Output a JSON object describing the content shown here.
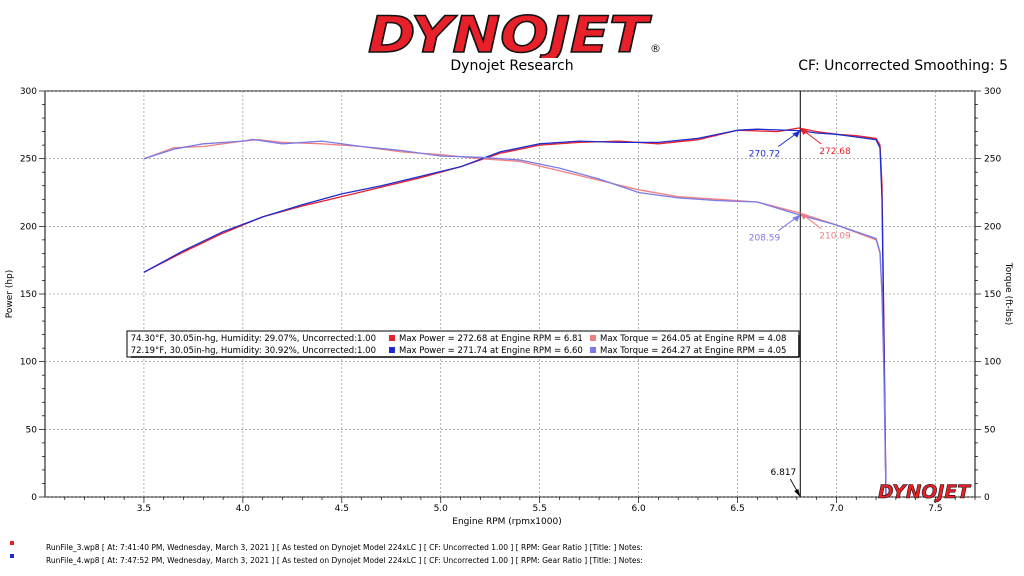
{
  "header": {
    "logo_text": "DYNOJET",
    "registered_mark": "®",
    "subtitle": "Dynojet Research",
    "cf_label": "CF: Uncorrected Smoothing: 5"
  },
  "chart_data": {
    "type": "line",
    "xlabel": "Engine RPM (rpmx1000)",
    "ylabel_left": "Power (hp)",
    "ylabel_right": "Torque (ft-lbs)",
    "xlim": [
      3.0,
      7.7
    ],
    "ylim": [
      0,
      300
    ],
    "x_ticks": [
      "3.5",
      "4.0",
      "4.5",
      "5.0",
      "5.5",
      "6.0",
      "6.5",
      "7.0",
      "7.5"
    ],
    "y_ticks": [
      "0",
      "50",
      "100",
      "150",
      "200",
      "250",
      "300"
    ],
    "grid": true,
    "series": [
      {
        "name": "Power",
        "run": "RunFile_3",
        "color": "#e8202a",
        "x": [
          3.5,
          3.7,
          3.9,
          4.1,
          4.3,
          4.5,
          4.7,
          4.9,
          5.1,
          5.3,
          5.5,
          5.7,
          5.9,
          6.1,
          6.3,
          6.5,
          6.7,
          6.81,
          6.9,
          7.0,
          7.1,
          7.2,
          7.22,
          7.23,
          7.24,
          7.25
        ],
        "y": [
          166,
          181,
          195,
          207,
          215,
          222,
          229,
          236,
          244,
          254,
          260,
          262,
          263,
          261,
          264,
          271,
          270,
          272.68,
          270,
          268,
          267,
          265,
          260,
          230,
          120,
          0
        ]
      },
      {
        "name": "Torque",
        "run": "RunFile_3",
        "color": "#f08080",
        "x": [
          3.5,
          3.65,
          3.8,
          4.0,
          4.08,
          4.2,
          4.4,
          4.6,
          4.8,
          5.0,
          5.2,
          5.4,
          5.6,
          5.8,
          6.0,
          6.2,
          6.4,
          6.6,
          6.81,
          7.0,
          7.2,
          7.22,
          7.23,
          7.24,
          7.25
        ],
        "y": [
          250,
          258,
          259,
          263,
          264.05,
          262,
          261,
          259,
          255,
          253,
          250,
          248,
          241,
          234,
          227,
          222,
          220,
          218,
          210.09,
          201,
          190,
          180,
          150,
          90,
          0
        ]
      },
      {
        "name": "Power",
        "run": "RunFile_4",
        "color": "#1d2bd0",
        "x": [
          3.5,
          3.7,
          3.9,
          4.1,
          4.3,
          4.5,
          4.7,
          4.9,
          5.1,
          5.3,
          5.5,
          5.7,
          5.9,
          6.1,
          6.3,
          6.5,
          6.6,
          6.81,
          6.9,
          7.0,
          7.1,
          7.2,
          7.22,
          7.23,
          7.24,
          7.25
        ],
        "y": [
          166,
          182,
          196,
          207,
          216,
          224,
          230,
          237,
          244,
          255,
          261,
          263,
          262,
          262,
          265,
          271,
          271.74,
          270.72,
          269,
          268,
          266,
          264,
          258,
          220,
          110,
          0
        ]
      },
      {
        "name": "Torque",
        "run": "RunFile_4",
        "color": "#7a7ae8",
        "x": [
          3.5,
          3.65,
          3.8,
          4.0,
          4.05,
          4.2,
          4.4,
          4.6,
          4.8,
          5.0,
          5.2,
          5.4,
          5.6,
          5.8,
          6.0,
          6.2,
          6.4,
          6.6,
          6.81,
          7.0,
          7.2,
          7.22,
          7.23,
          7.24,
          7.25
        ],
        "y": [
          250,
          257,
          261,
          263,
          264.27,
          261,
          263,
          259,
          256,
          252,
          251,
          249,
          243,
          235,
          225,
          221,
          219,
          218,
          208.59,
          201,
          191,
          181,
          150,
          90,
          0
        ]
      }
    ],
    "cursor": {
      "x": 6.817,
      "label": "6.817"
    },
    "cursor_values": [
      {
        "label": "272.68",
        "y": 272.68,
        "color": "#e8202a"
      },
      {
        "label": "270.72",
        "y": 270.72,
        "color": "#1d2bd0"
      },
      {
        "label": "210.09",
        "y": 210.09,
        "color": "#f08080"
      },
      {
        "label": "208.59",
        "y": 208.59,
        "color": "#7a7ae8"
      }
    ],
    "legend": [
      {
        "conditions": "74.30°F, 30.05in-hg, Humidity: 29.07%, Uncorrected:1.00",
        "power_color": "#e8202a",
        "power_text": "Max Power = 272.68 at Engine RPM = 6.81",
        "torque_color": "#f08080",
        "torque_text": "Max Torque = 264.05 at Engine RPM = 4.08"
      },
      {
        "conditions": "72.19°F, 30.05in-hg, Humidity: 30.92%, Uncorrected:1.00",
        "power_color": "#1d2bd0",
        "power_text": "Max Power = 271.74 at Engine RPM = 6.60",
        "torque_color": "#7a7ae8",
        "torque_text": "Max Torque = 264.27 at Engine RPM = 4.05"
      }
    ],
    "watermark": "DYNOJET"
  },
  "footer": {
    "runs": [
      {
        "color": "#e8202a",
        "text": "RunFile_3.wp8  [ At:  7:41:40 PM, Wednesday, March 3, 2021 ]  [ As tested on Dynojet Model 224xLC ]  [ CF: Uncorrected 1.00 ]  [ RPM: Gear Ratio ]  [Title: ]   Notes:"
      },
      {
        "color": "#1d2bd0",
        "text": "RunFile_4.wp8  [ At:  7:47:52 PM, Wednesday, March 3, 2021 ]  [ As tested on Dynojet Model 224xLC ]  [ CF: Uncorrected 1.00 ]  [ RPM: Gear Ratio ]  [Title: ]   Notes:"
      }
    ]
  }
}
